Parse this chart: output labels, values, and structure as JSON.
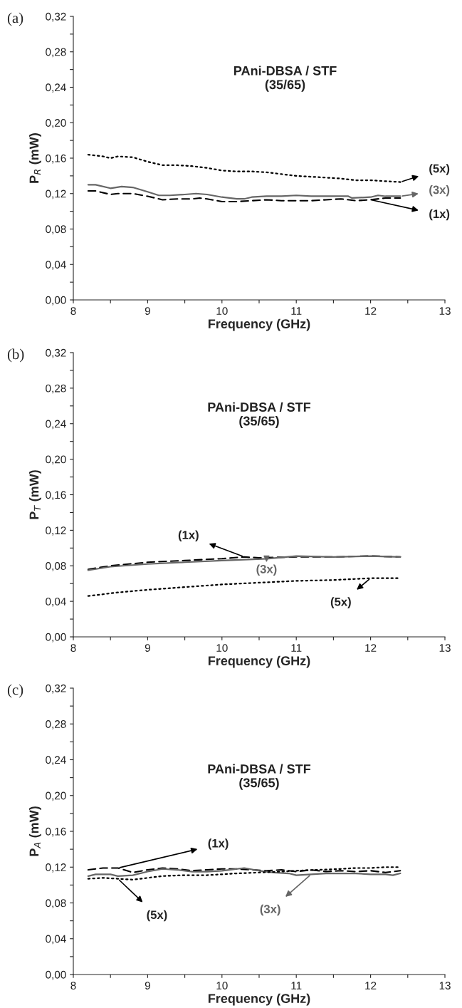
{
  "chart_data": [
    {
      "type": "line",
      "title": "PAni-DBSA / STF\n(35/65)",
      "xlabel": "Frequency (GHz)",
      "ylabel": "P$_{R}$ (mW)",
      "annotations": [
        "(a)"
      ],
      "legend": "right",
      "xlim": [
        8,
        13
      ],
      "xticks": [
        8,
        {
          "value": 8.5,
          "label": null
        },
        9,
        {
          "value": 9.5,
          "label": null
        },
        10,
        {
          "value": 10.5,
          "label": null
        },
        11,
        {
          "value": 11.5,
          "label": null
        },
        12,
        {
          "value": 12.5,
          "label": null
        },
        13
      ],
      "ylim": [
        0,
        0.32
      ],
      "yticks": [
        {
          "value": 0,
          "label": "0,00"
        },
        {
          "value": 0.02,
          "label": null
        },
        {
          "value": 0.04,
          "label": "0,04"
        },
        {
          "value": 0.06,
          "label": null
        },
        {
          "value": 0.08,
          "label": "0,08"
        },
        {
          "value": 0.1,
          "label": null
        },
        {
          "value": 0.12,
          "label": "0,12"
        },
        {
          "value": 0.14,
          "label": null
        },
        {
          "value": 0.16,
          "label": "0,16"
        },
        {
          "value": 0.18,
          "label": null
        },
        {
          "value": 0.2,
          "label": "0,20"
        },
        {
          "value": 0.22,
          "label": null
        },
        {
          "value": 0.24,
          "label": "0,24"
        },
        {
          "value": 0.26,
          "label": null
        },
        {
          "value": 0.28,
          "label": "0,28"
        },
        {
          "value": 0.3,
          "label": null
        },
        {
          "value": 0.32,
          "label": "0,32"
        }
      ],
      "series": [
        {
          "name": "(5x)",
          "color": "#000000",
          "line_style": "dotted",
          "x": [
            8.2,
            8.4,
            8.5,
            8.6,
            8.8,
            9.0,
            9.2,
            9.4,
            9.6,
            9.8,
            10.0,
            10.2,
            10.4,
            10.6,
            10.8,
            11.0,
            11.2,
            11.4,
            11.6,
            11.8,
            12.0,
            12.2,
            12.4
          ],
          "values": [
            0.164,
            0.162,
            0.16,
            0.162,
            0.161,
            0.156,
            0.152,
            0.152,
            0.151,
            0.149,
            0.146,
            0.145,
            0.145,
            0.144,
            0.142,
            0.14,
            0.139,
            0.138,
            0.137,
            0.135,
            0.135,
            0.134,
            0.133
          ]
        },
        {
          "name": "(3x)",
          "color": "#666666",
          "line_style": "solid",
          "x": [
            8.2,
            8.3,
            8.5,
            8.65,
            8.8,
            9.0,
            9.15,
            9.3,
            9.5,
            9.65,
            9.8,
            10.0,
            10.2,
            10.3,
            10.4,
            10.6,
            10.8,
            11.0,
            11.2,
            11.4,
            11.6,
            11.7,
            11.75,
            12.0,
            12.1,
            12.2,
            12.4
          ],
          "values": [
            0.13,
            0.13,
            0.126,
            0.128,
            0.127,
            0.122,
            0.118,
            0.118,
            0.119,
            0.12,
            0.119,
            0.116,
            0.114,
            0.114,
            0.116,
            0.117,
            0.117,
            0.118,
            0.117,
            0.117,
            0.117,
            0.117,
            0.115,
            0.116,
            0.118,
            0.117,
            0.117
          ]
        },
        {
          "name": "(1x)",
          "color": "#000000",
          "line_style": "dashed",
          "x": [
            8.2,
            8.3,
            8.5,
            8.6,
            8.8,
            9.0,
            9.2,
            9.4,
            9.6,
            9.7,
            9.8,
            10.0,
            10.2,
            10.4,
            10.6,
            10.8,
            11.0,
            11.2,
            11.4,
            11.6,
            11.8,
            12.0,
            12.2,
            12.4
          ],
          "values": [
            0.123,
            0.123,
            0.119,
            0.12,
            0.12,
            0.117,
            0.113,
            0.114,
            0.114,
            0.115,
            0.114,
            0.111,
            0.111,
            0.112,
            0.113,
            0.112,
            0.112,
            0.112,
            0.113,
            0.114,
            0.112,
            0.113,
            0.115,
            0.115
          ]
        }
      ]
    },
    {
      "type": "line",
      "title": "PAni-DBSA / STF\n(35/65)",
      "xlabel": "Frequency (GHz)",
      "ylabel": "P$_{T}$ (mW)",
      "annotations": [
        "(b)"
      ],
      "legend": "bottom right",
      "xlim": [
        8,
        13
      ],
      "xticks": [
        8,
        {
          "value": 8.5,
          "label": null
        },
        9,
        {
          "value": 9.5,
          "label": null
        },
        10,
        {
          "value": 10.5,
          "label": null
        },
        11,
        {
          "value": 11.5,
          "label": null
        },
        12,
        {
          "value": 12.5,
          "label": null
        },
        13
      ],
      "ylim": [
        0,
        0.32
      ],
      "yticks": [
        {
          "value": 0,
          "label": "0,00"
        },
        {
          "value": 0.02,
          "label": null
        },
        {
          "value": 0.04,
          "label": "0,04"
        },
        {
          "value": 0.06,
          "label": null
        },
        {
          "value": 0.08,
          "label": "0,08"
        },
        {
          "value": 0.1,
          "label": null
        },
        {
          "value": 0.12,
          "label": "0,12"
        },
        {
          "value": 0.14,
          "label": null
        },
        {
          "value": 0.16,
          "label": "0,16"
        },
        {
          "value": 0.18,
          "label": null
        },
        {
          "value": 0.2,
          "label": "0,20"
        },
        {
          "value": 0.22,
          "label": null
        },
        {
          "value": 0.24,
          "label": "0,24"
        },
        {
          "value": 0.26,
          "label": null
        },
        {
          "value": 0.28,
          "label": "0,28"
        },
        {
          "value": 0.3,
          "label": null
        },
        {
          "value": 0.32,
          "label": "0,32"
        }
      ],
      "series": [
        {
          "name": "(1x)",
          "color": "#000000",
          "line_style": "dashed",
          "x": [
            8.2,
            8.5,
            9.0,
            9.5,
            10.0,
            10.3,
            10.5,
            11.0,
            11.5,
            12.0,
            12.4
          ],
          "values": [
            0.076,
            0.08,
            0.084,
            0.086,
            0.088,
            0.09,
            0.089,
            0.09,
            0.09,
            0.091,
            0.09
          ]
        },
        {
          "name": "(3x)",
          "color": "#666666",
          "line_style": "solid",
          "x": [
            8.2,
            8.5,
            9.0,
            9.5,
            10.0,
            10.6,
            11.0,
            11.5,
            12.0,
            12.4
          ],
          "values": [
            0.075,
            0.079,
            0.082,
            0.084,
            0.086,
            0.088,
            0.091,
            0.09,
            0.091,
            0.09
          ]
        },
        {
          "name": "(5x)",
          "color": "#000000",
          "line_style": "dotted",
          "x": [
            8.2,
            8.6,
            9.0,
            9.5,
            10.0,
            10.5,
            11.0,
            11.5,
            12.0,
            12.4
          ],
          "values": [
            0.046,
            0.05,
            0.053,
            0.056,
            0.059,
            0.061,
            0.063,
            0.064,
            0.066,
            0.066
          ]
        }
      ]
    },
    {
      "type": "line",
      "title": "PAni-DBSA / STF\n(35/65)",
      "xlabel": "Frequency (GHz)",
      "ylabel": "P$_{A}$ (mW)",
      "annotations": [
        "(c)"
      ],
      "legend": "bottom",
      "xlim": [
        8,
        13
      ],
      "xticks": [
        8,
        {
          "value": 8.5,
          "label": null
        },
        9,
        {
          "value": 9.5,
          "label": null
        },
        10,
        {
          "value": 10.5,
          "label": null
        },
        11,
        {
          "value": 11.5,
          "label": null
        },
        12,
        {
          "value": 12.5,
          "label": null
        },
        13
      ],
      "ylim": [
        0,
        0.32
      ],
      "yticks": [
        {
          "value": 0,
          "label": "0,00"
        },
        {
          "value": 0.02,
          "label": null
        },
        {
          "value": 0.04,
          "label": "0,04"
        },
        {
          "value": 0.06,
          "label": null
        },
        {
          "value": 0.08,
          "label": "0,08"
        },
        {
          "value": 0.1,
          "label": null
        },
        {
          "value": 0.12,
          "label": "0,12"
        },
        {
          "value": 0.14,
          "label": null
        },
        {
          "value": 0.16,
          "label": "0,16"
        },
        {
          "value": 0.18,
          "label": null
        },
        {
          "value": 0.2,
          "label": "0,20"
        },
        {
          "value": 0.22,
          "label": null
        },
        {
          "value": 0.24,
          "label": "0,24"
        },
        {
          "value": 0.26,
          "label": null
        },
        {
          "value": 0.28,
          "label": "0,28"
        },
        {
          "value": 0.3,
          "label": null
        },
        {
          "value": 0.32,
          "label": "0,32"
        }
      ],
      "series": [
        {
          "name": "(1x)",
          "color": "#000000",
          "line_style": "dashed",
          "x": [
            8.2,
            8.4,
            8.6,
            8.8,
            9.0,
            9.2,
            9.4,
            9.6,
            9.8,
            10.0,
            10.2,
            10.4,
            10.6,
            10.8,
            11.0,
            11.2,
            11.4,
            11.6,
            11.8,
            12.0,
            12.2,
            12.4
          ],
          "values": [
            0.117,
            0.119,
            0.119,
            0.114,
            0.117,
            0.119,
            0.118,
            0.116,
            0.117,
            0.118,
            0.118,
            0.117,
            0.116,
            0.117,
            0.115,
            0.117,
            0.115,
            0.116,
            0.115,
            0.116,
            0.114,
            0.116
          ]
        },
        {
          "name": "(3x)",
          "color": "#666666",
          "line_style": "solid",
          "x": [
            8.2,
            8.3,
            8.5,
            8.6,
            8.8,
            9.0,
            9.2,
            9.4,
            9.6,
            9.8,
            10.0,
            10.3,
            10.5,
            10.7,
            10.9,
            11.0,
            11.2,
            11.4,
            11.6,
            11.8,
            12.0,
            12.2,
            12.3,
            12.4
          ],
          "values": [
            0.11,
            0.112,
            0.112,
            0.11,
            0.111,
            0.115,
            0.118,
            0.117,
            0.115,
            0.115,
            0.116,
            0.119,
            0.116,
            0.114,
            0.113,
            0.111,
            0.112,
            0.113,
            0.113,
            0.113,
            0.112,
            0.112,
            0.111,
            0.113
          ]
        },
        {
          "name": "(5x)",
          "color": "#000000",
          "line_style": "dotted",
          "x": [
            8.2,
            8.4,
            8.6,
            8.8,
            9.0,
            9.2,
            9.5,
            9.8,
            10.0,
            10.2,
            10.5,
            10.8,
            11.0,
            11.3,
            11.6,
            11.8,
            12.0,
            12.2,
            12.4
          ],
          "values": [
            0.107,
            0.108,
            0.107,
            0.106,
            0.108,
            0.11,
            0.111,
            0.111,
            0.112,
            0.113,
            0.114,
            0.115,
            0.116,
            0.117,
            0.118,
            0.119,
            0.119,
            0.12,
            0.12
          ]
        }
      ]
    }
  ]
}
